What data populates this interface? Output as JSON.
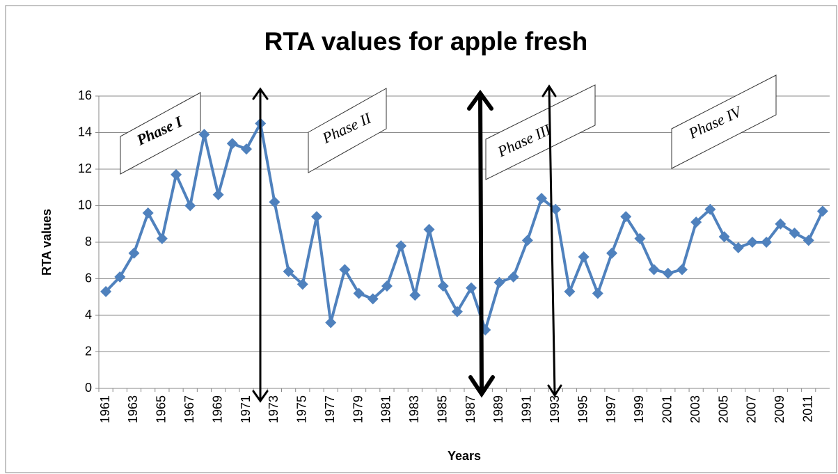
{
  "chart_data": {
    "type": "line",
    "title": "RTA values for apple fresh",
    "x_label": "Years",
    "y_label": "RTA values",
    "categories": [
      "1961",
      null,
      "1963",
      null,
      "1965",
      null,
      "1967",
      null,
      "1969",
      null,
      "1971",
      null,
      "1973",
      null,
      "1975",
      null,
      "1977",
      null,
      "1979",
      null,
      "1981",
      null,
      "1983",
      null,
      "1985",
      null,
      "1987",
      null,
      "1989",
      null,
      "1991",
      null,
      "1993",
      null,
      "1995",
      null,
      "1997",
      null,
      "1999",
      null,
      "2001",
      null,
      "2003",
      null,
      "2005",
      null,
      "2007",
      null,
      "2009",
      null,
      "2011",
      null
    ],
    "series": [
      {
        "name": "RTA values",
        "color": "#4f81bd",
        "values": [
          5.3,
          6.1,
          7.4,
          9.6,
          8.2,
          11.7,
          10.0,
          13.9,
          10.6,
          13.4,
          13.1,
          14.5,
          10.2,
          6.4,
          5.7,
          9.4,
          3.6,
          6.5,
          5.2,
          4.9,
          5.6,
          7.8,
          5.1,
          8.7,
          5.6,
          4.2,
          5.5,
          3.2,
          5.8,
          6.1,
          8.1,
          10.4,
          9.8,
          5.3,
          7.2,
          5.2,
          7.4,
          9.4,
          8.2,
          6.5,
          6.3,
          6.5,
          9.1,
          9.8,
          8.3,
          7.7,
          8.0,
          8.0,
          9.0,
          8.5,
          8.1,
          9.7
        ]
      }
    ],
    "ylim": [
      0,
      16
    ],
    "yticks": [
      0,
      2,
      4,
      6,
      8,
      10,
      12,
      14,
      16
    ],
    "grid": true,
    "annotations": [
      "Phase   I",
      "Phase II",
      "Phase III",
      "Phase IV"
    ]
  }
}
